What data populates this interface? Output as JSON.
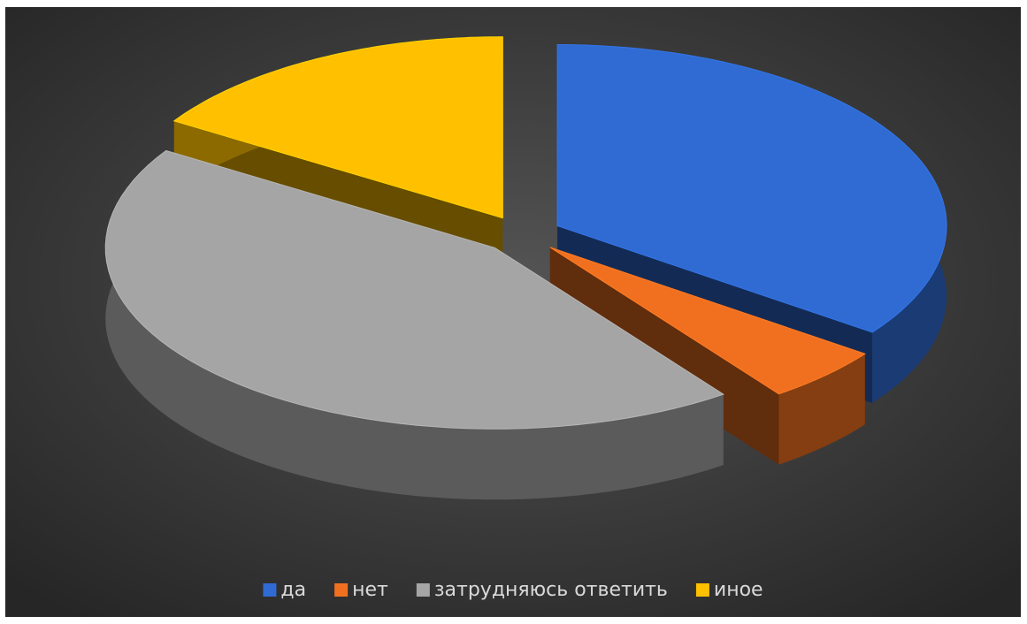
{
  "chart_data": {
    "type": "pie",
    "categories": [
      "да",
      "нет",
      "затрудняюсь ответить",
      "иное"
    ],
    "values": [
      35,
      5,
      44,
      16
    ],
    "colors": [
      "#2f6bd3",
      "#f07020",
      "#a5a5a5",
      "#ffc000"
    ],
    "legend": "bottom"
  }
}
